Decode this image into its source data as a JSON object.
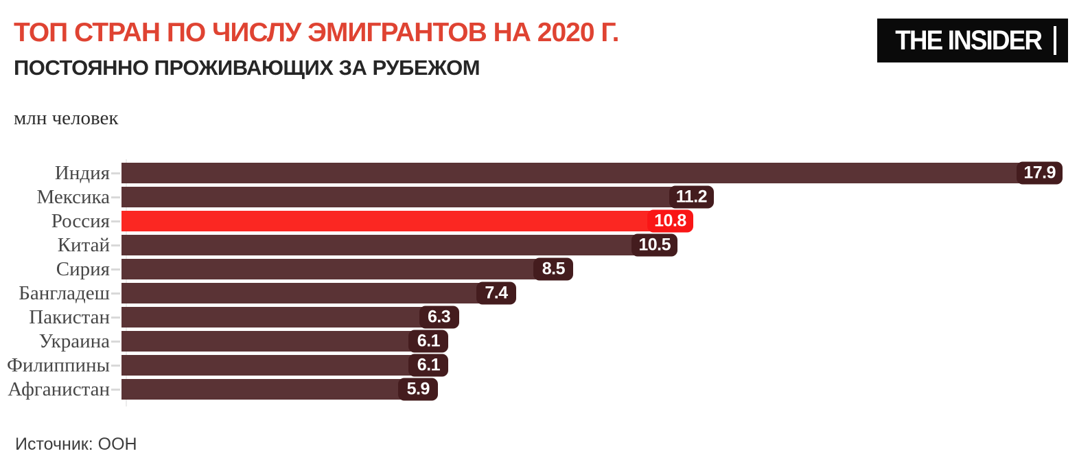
{
  "header": {
    "title": "ТОП СТРАН ПО ЧИСЛУ ЭМИГРАНТОВ НА 2020 Г.",
    "subtitle": "ПОСТОЯННО ПРОЖИВАЮЩИХ ЗА РУБЕЖОМ",
    "units": "млн человек",
    "logo": "THE INSIDER"
  },
  "footer": {
    "source": "Источник: ООН"
  },
  "colors": {
    "title_red": "#df4332",
    "subtitle_black": "#262626",
    "bar": "#5a3335",
    "bar_badge": "#441c1e",
    "highlight": "#fb2722",
    "highlight_badge": "#f91616",
    "axis_line": "#ececec",
    "tick": "#d9d9d9",
    "country_label": "#474747",
    "logo_bg": "#0a0a0a",
    "logo_text": "#ffffff"
  },
  "chart_data": {
    "type": "bar",
    "orientation": "horizontal",
    "title": "ТОП СТРАН ПО ЧИСЛУ ЭМИГРАНТОВ НА 2020 Г.",
    "subtitle": "ПОСТОЯННО ПРОЖИВАЮЩИХ ЗА РУБЕЖОМ",
    "ylabel": "",
    "xlabel": "млн человек",
    "xlim": [
      0,
      17.9
    ],
    "grid": false,
    "legend": false,
    "source": "Источник: ООН",
    "categories": [
      "Индия",
      "Мексика",
      "Россия",
      "Китай",
      "Сирия",
      "Бангладеш",
      "Пакистан",
      "Украина",
      "Филиппины",
      "Афганистан"
    ],
    "values": [
      17.9,
      11.2,
      10.8,
      10.5,
      8.5,
      7.4,
      6.3,
      6.1,
      6.1,
      5.9
    ],
    "value_labels": [
      "17.9",
      "11.2",
      "10.8",
      "10.5",
      "8.5",
      "7.4",
      "6.3",
      "6.1",
      "6.1",
      "5.9"
    ],
    "highlighted_category": "Россия"
  }
}
